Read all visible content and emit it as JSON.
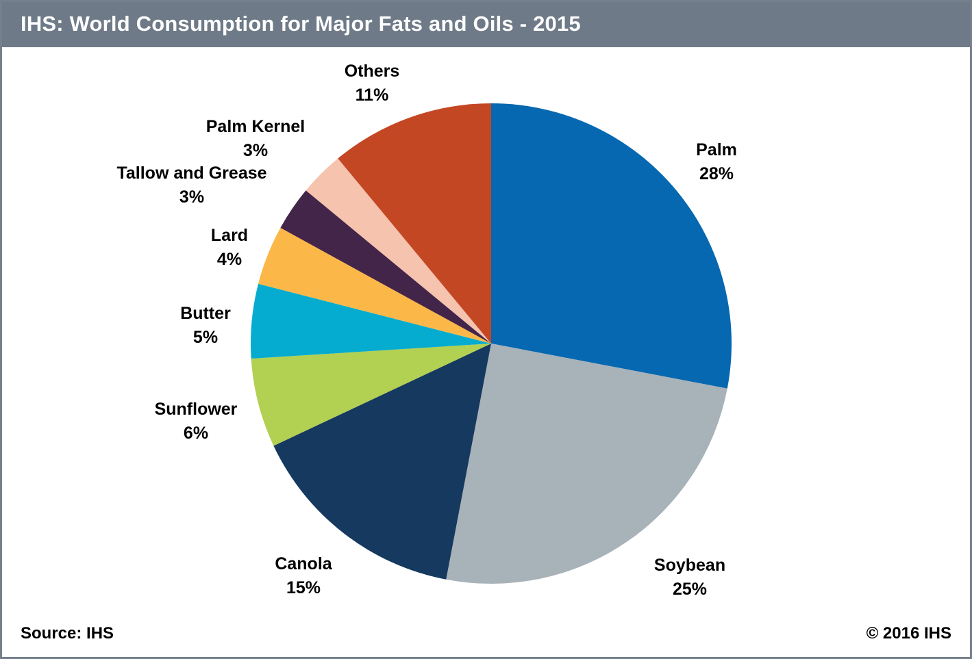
{
  "header": {
    "title": "IHS: World Consumption for Major Fats and Oils - 2015"
  },
  "footer": {
    "source": "Source: IHS",
    "copyright": "© 2016 IHS"
  },
  "colors": {
    "header_bg": "#6E7A87",
    "frame_border": "#75808C",
    "background": "#FFFFFF"
  },
  "chart_data": {
    "type": "pie",
    "title": "IHS: World Consumption for Major Fats and Oils - 2015",
    "start_angle_deg": 0,
    "direction": "clockwise",
    "legend_position": "none",
    "labels_outside": true,
    "slices": [
      {
        "label": "Palm",
        "value": 28,
        "pct_label": "28%",
        "color": "#0568B1"
      },
      {
        "label": "Soybean",
        "value": 25,
        "pct_label": "25%",
        "color": "#A8B2B9"
      },
      {
        "label": "Canola",
        "value": 15,
        "pct_label": "15%",
        "color": "#16395F"
      },
      {
        "label": "Sunflower",
        "value": 6,
        "pct_label": "6%",
        "color": "#B2D052"
      },
      {
        "label": "Butter",
        "value": 5,
        "pct_label": "5%",
        "color": "#06ACCF"
      },
      {
        "label": "Lard",
        "value": 4,
        "pct_label": "4%",
        "color": "#FBB848"
      },
      {
        "label": "Tallow and Grease",
        "value": 3,
        "pct_label": "3%",
        "color": "#432549"
      },
      {
        "label": "Palm Kernel",
        "value": 3,
        "pct_label": "3%",
        "color": "#F5C3AE"
      },
      {
        "label": "Others",
        "value": 11,
        "pct_label": "11%",
        "color": "#C44724"
      }
    ]
  }
}
